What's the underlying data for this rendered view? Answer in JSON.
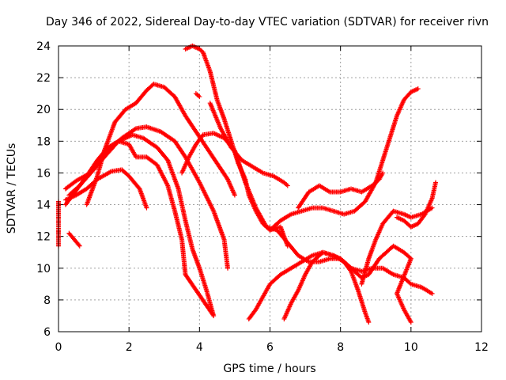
{
  "chart_data": {
    "type": "scatter",
    "title": "Day 346 of 2022, Sidereal Day-to-day VTEC variation (SDTVAR) for receiver rivn",
    "xlabel": "GPS time / hours",
    "ylabel": "SDTVAR / TECUs",
    "xlim": [
      0,
      12
    ],
    "ylim": [
      6,
      24
    ],
    "xticks": [
      0,
      2,
      4,
      6,
      8,
      10,
      12
    ],
    "yticks": [
      6,
      8,
      10,
      12,
      14,
      16,
      18,
      20,
      22,
      24
    ],
    "xtick_labels": [
      "0",
      "2",
      "4",
      "6",
      "8",
      "10",
      "12"
    ],
    "ytick_labels": [
      "6",
      "8",
      "10",
      "12",
      "14",
      "16",
      "18",
      "20",
      "22",
      "24"
    ],
    "grid": true,
    "marker": "plus",
    "color": "#ff0000",
    "series": [
      {
        "points": [
          [
            0.3,
            14.6
          ],
          [
            0.6,
            15.2
          ],
          [
            1.0,
            16.2
          ],
          [
            1.4,
            17.4
          ],
          [
            1.8,
            18.2
          ],
          [
            2.2,
            18.8
          ],
          [
            2.5,
            18.9
          ],
          [
            2.9,
            18.6
          ],
          [
            3.3,
            18.0
          ],
          [
            3.6,
            17.0
          ],
          [
            4.0,
            15.4
          ],
          [
            4.4,
            13.6
          ],
          [
            4.7,
            11.8
          ],
          [
            4.8,
            10.0
          ]
        ]
      },
      {
        "points": [
          [
            0.2,
            15.0
          ],
          [
            0.5,
            15.5
          ],
          [
            0.9,
            16.0
          ],
          [
            1.3,
            17.0
          ],
          [
            1.7,
            18.0
          ],
          [
            2.1,
            18.4
          ],
          [
            2.4,
            18.2
          ],
          [
            2.8,
            17.6
          ],
          [
            3.1,
            16.8
          ],
          [
            3.4,
            15.0
          ],
          [
            3.6,
            13.0
          ],
          [
            3.8,
            11.2
          ],
          [
            4.0,
            10.0
          ],
          [
            4.2,
            8.6
          ],
          [
            4.4,
            7.0
          ],
          [
            3.6,
            9.6
          ]
        ]
      },
      {
        "points": [
          [
            0.2,
            14.3
          ],
          [
            0.5,
            14.6
          ],
          [
            0.8,
            15.0
          ],
          [
            1.1,
            15.6
          ],
          [
            1.5,
            16.1
          ],
          [
            1.8,
            16.2
          ],
          [
            2.0,
            15.8
          ],
          [
            2.3,
            15.0
          ],
          [
            2.5,
            13.8
          ]
        ]
      },
      {
        "points": [
          [
            0.2,
            14.0
          ],
          [
            0.5,
            14.9
          ],
          [
            0.8,
            15.8
          ],
          [
            1.1,
            16.8
          ],
          [
            1.4,
            17.6
          ],
          [
            1.7,
            18.0
          ],
          [
            2.0,
            17.8
          ],
          [
            2.2,
            17.0
          ],
          [
            2.5,
            17.0
          ],
          [
            2.8,
            16.5
          ],
          [
            3.1,
            15.2
          ],
          [
            3.3,
            13.6
          ],
          [
            3.5,
            11.8
          ],
          [
            3.6,
            9.6
          ]
        ]
      },
      {
        "points": [
          [
            0.8,
            14.0
          ],
          [
            1.1,
            15.8
          ],
          [
            1.3,
            17.4
          ],
          [
            1.6,
            19.2
          ],
          [
            1.9,
            20.0
          ],
          [
            2.2,
            20.4
          ],
          [
            2.5,
            21.2
          ],
          [
            2.7,
            21.6
          ],
          [
            3.0,
            21.4
          ],
          [
            3.3,
            20.8
          ],
          [
            3.6,
            19.6
          ],
          [
            3.9,
            18.6
          ],
          [
            4.2,
            17.6
          ],
          [
            4.5,
            16.6
          ],
          [
            4.8,
            15.6
          ],
          [
            5.0,
            14.6
          ]
        ]
      },
      {
        "points": [
          [
            0.3,
            12.2
          ],
          [
            0.45,
            11.8
          ],
          [
            0.6,
            11.4
          ]
        ]
      },
      {
        "points": [
          [
            3.5,
            16.0
          ],
          [
            3.7,
            17.0
          ],
          [
            3.9,
            17.8
          ],
          [
            4.1,
            18.4
          ],
          [
            4.4,
            18.5
          ],
          [
            4.7,
            18.2
          ],
          [
            5.0,
            17.4
          ],
          [
            5.3,
            15.4
          ],
          [
            5.6,
            13.8
          ],
          [
            5.9,
            12.6
          ],
          [
            6.2,
            12.4
          ],
          [
            6.5,
            11.6
          ],
          [
            6.8,
            10.8
          ],
          [
            7.1,
            10.4
          ],
          [
            7.4,
            10.4
          ],
          [
            7.7,
            10.6
          ],
          [
            8.0,
            10.6
          ],
          [
            8.3,
            10.0
          ],
          [
            8.6,
            9.8
          ],
          [
            8.9,
            10.0
          ],
          [
            9.2,
            10.0
          ],
          [
            9.5,
            9.6
          ],
          [
            9.8,
            9.4
          ],
          [
            10.0,
            9.0
          ],
          [
            10.3,
            8.8
          ],
          [
            10.6,
            8.4
          ]
        ]
      },
      {
        "points": [
          [
            3.6,
            23.8
          ],
          [
            3.8,
            24.0
          ],
          [
            4.0,
            23.8
          ],
          [
            4.1,
            23.6
          ],
          [
            4.3,
            22.4
          ],
          [
            4.5,
            20.6
          ],
          [
            4.7,
            19.4
          ],
          [
            4.9,
            18.0
          ],
          [
            5.1,
            16.6
          ],
          [
            5.3,
            15.6
          ],
          [
            5.4,
            14.6
          ],
          [
            5.6,
            13.6
          ],
          [
            5.8,
            12.8
          ],
          [
            6.0,
            12.4
          ],
          [
            6.3,
            12.6
          ],
          [
            6.5,
            11.4
          ]
        ]
      },
      {
        "points": [
          [
            4.3,
            20.4
          ],
          [
            4.6,
            18.8
          ],
          [
            4.9,
            17.6
          ],
          [
            5.2,
            16.8
          ],
          [
            5.5,
            16.4
          ],
          [
            5.8,
            16.0
          ],
          [
            6.1,
            15.8
          ],
          [
            6.4,
            15.4
          ],
          [
            6.5,
            15.2
          ],
          [
            4.0,
            20.8
          ],
          [
            3.9,
            21.0
          ]
        ]
      },
      {
        "points": [
          [
            5.4,
            6.8
          ],
          [
            5.6,
            7.4
          ],
          [
            5.8,
            8.2
          ],
          [
            6.0,
            9.0
          ],
          [
            6.3,
            9.6
          ],
          [
            6.6,
            10.0
          ],
          [
            6.9,
            10.4
          ],
          [
            7.2,
            10.8
          ],
          [
            7.5,
            11.0
          ],
          [
            7.8,
            10.8
          ],
          [
            8.1,
            10.4
          ],
          [
            8.3,
            9.8
          ],
          [
            8.5,
            8.6
          ],
          [
            8.7,
            7.2
          ],
          [
            8.8,
            6.6
          ]
        ]
      },
      {
        "points": [
          [
            6.4,
            6.8
          ],
          [
            6.6,
            7.8
          ],
          [
            6.8,
            8.6
          ],
          [
            7.0,
            9.6
          ],
          [
            7.2,
            10.4
          ],
          [
            7.5,
            11.0
          ],
          [
            7.8,
            10.8
          ],
          [
            8.0,
            10.6
          ],
          [
            8.2,
            10.2
          ],
          [
            8.4,
            9.8
          ],
          [
            8.6,
            9.4
          ],
          [
            8.8,
            9.6
          ],
          [
            9.1,
            10.6
          ],
          [
            9.3,
            11.0
          ],
          [
            9.5,
            11.4
          ],
          [
            9.8,
            11.0
          ],
          [
            10.0,
            10.6
          ],
          [
            9.6,
            8.4
          ],
          [
            9.8,
            7.4
          ],
          [
            10.0,
            6.6
          ]
        ]
      },
      {
        "points": [
          [
            6.0,
            12.4
          ],
          [
            6.3,
            13.0
          ],
          [
            6.6,
            13.4
          ],
          [
            6.9,
            13.6
          ],
          [
            7.2,
            13.8
          ],
          [
            7.5,
            13.8
          ],
          [
            7.8,
            13.6
          ],
          [
            8.1,
            13.4
          ],
          [
            8.4,
            13.6
          ],
          [
            8.7,
            14.2
          ],
          [
            9.0,
            15.4
          ],
          [
            9.2,
            16.8
          ],
          [
            9.4,
            18.2
          ],
          [
            9.6,
            19.6
          ],
          [
            9.8,
            20.6
          ],
          [
            10.0,
            21.1
          ],
          [
            10.2,
            21.3
          ]
        ]
      },
      {
        "points": [
          [
            6.8,
            13.8
          ],
          [
            7.1,
            14.8
          ],
          [
            7.4,
            15.2
          ],
          [
            7.7,
            14.8
          ],
          [
            8.0,
            14.8
          ],
          [
            8.3,
            15.0
          ],
          [
            8.6,
            14.8
          ],
          [
            8.9,
            15.2
          ],
          [
            9.1,
            15.6
          ],
          [
            9.2,
            16.0
          ]
        ]
      },
      {
        "points": [
          [
            8.6,
            9.0
          ],
          [
            8.8,
            10.6
          ],
          [
            9.0,
            11.8
          ],
          [
            9.2,
            12.8
          ],
          [
            9.5,
            13.6
          ],
          [
            9.8,
            13.4
          ],
          [
            10.0,
            13.2
          ],
          [
            10.3,
            13.4
          ],
          [
            10.6,
            13.8
          ]
        ]
      },
      {
        "points": [
          [
            9.6,
            13.2
          ],
          [
            9.8,
            13.0
          ],
          [
            10.0,
            12.6
          ],
          [
            10.2,
            12.8
          ],
          [
            10.4,
            13.4
          ],
          [
            10.6,
            14.4
          ],
          [
            10.7,
            15.4
          ]
        ]
      },
      {
        "points": [
          [
            0.0,
            14.2
          ],
          [
            0.0,
            13.8
          ],
          [
            0.0,
            13.2
          ],
          [
            0.0,
            12.6
          ],
          [
            0.0,
            12.4
          ],
          [
            0.0,
            12.0
          ],
          [
            0.0,
            11.4
          ]
        ]
      }
    ]
  }
}
